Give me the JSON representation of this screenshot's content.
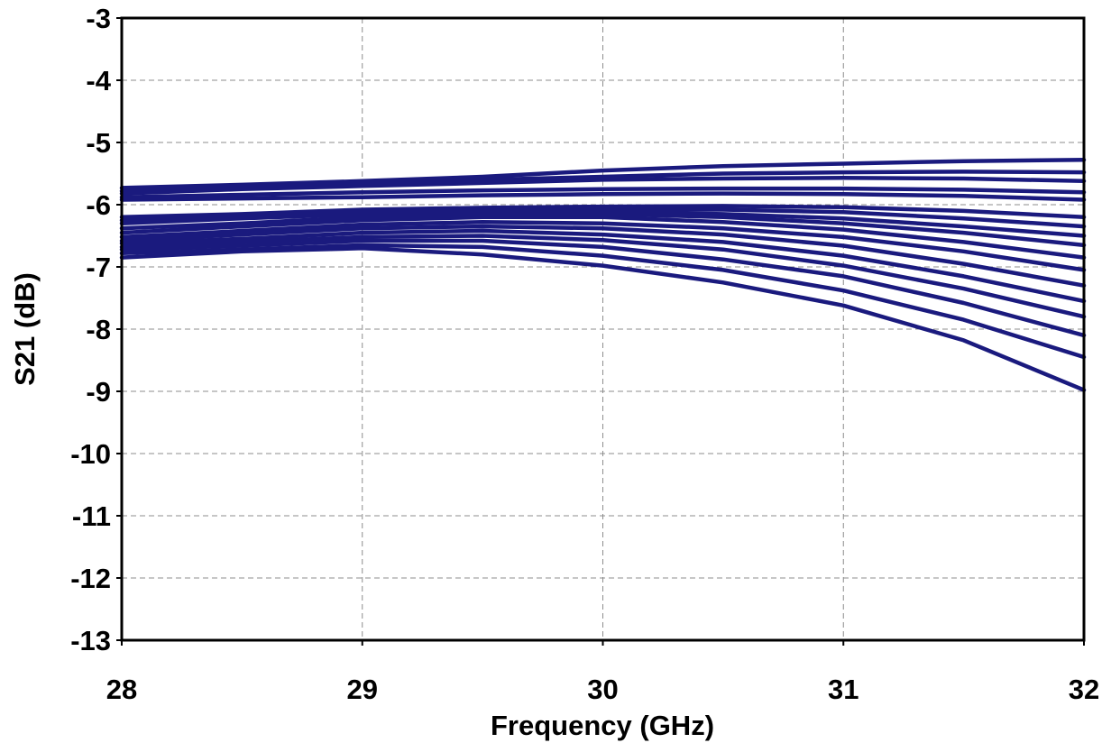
{
  "chart_data": {
    "type": "line",
    "title": "",
    "xlabel": "Frequency (GHz)",
    "ylabel": "S21 (dB)",
    "xlim": [
      28,
      32
    ],
    "ylim": [
      -13,
      -3
    ],
    "x_ticks": [
      "28",
      "29",
      "30",
      "31",
      "32"
    ],
    "y_ticks": [
      "-3",
      "-4",
      "-5",
      "-6",
      "-7",
      "-8",
      "-9",
      "-10",
      "-11",
      "-12",
      "-13"
    ],
    "grid": true,
    "line_color": "#1a1a7e",
    "x": [
      28,
      28.5,
      29,
      29.5,
      30,
      30.5,
      31,
      31.5,
      32
    ],
    "series": [
      {
        "values": [
          -5.73,
          -5.68,
          -5.62,
          -5.55,
          -5.45,
          -5.38,
          -5.34,
          -5.3,
          -5.28
        ]
      },
      {
        "values": [
          -5.78,
          -5.72,
          -5.65,
          -5.6,
          -5.55,
          -5.5,
          -5.48,
          -5.47,
          -5.48
        ]
      },
      {
        "values": [
          -5.82,
          -5.75,
          -5.7,
          -5.65,
          -5.6,
          -5.58,
          -5.57,
          -5.58,
          -5.62
        ]
      },
      {
        "values": [
          -5.88,
          -5.84,
          -5.8,
          -5.77,
          -5.75,
          -5.74,
          -5.74,
          -5.76,
          -5.8
        ]
      },
      {
        "values": [
          -5.92,
          -5.9,
          -5.88,
          -5.85,
          -5.83,
          -5.82,
          -5.83,
          -5.86,
          -5.92
        ]
      },
      {
        "values": [
          -6.2,
          -6.15,
          -6.08,
          -6.05,
          -6.03,
          -6.02,
          -6.04,
          -6.1,
          -6.2
        ]
      },
      {
        "values": [
          -6.25,
          -6.2,
          -6.12,
          -6.1,
          -6.08,
          -6.08,
          -6.12,
          -6.22,
          -6.35
        ]
      },
      {
        "values": [
          -6.3,
          -6.22,
          -6.15,
          -6.12,
          -6.12,
          -6.15,
          -6.22,
          -6.35,
          -6.5
        ]
      },
      {
        "values": [
          -6.38,
          -6.3,
          -6.2,
          -6.15,
          -6.15,
          -6.2,
          -6.3,
          -6.45,
          -6.65
        ]
      },
      {
        "values": [
          -6.45,
          -6.35,
          -6.25,
          -6.2,
          -6.2,
          -6.28,
          -6.4,
          -6.6,
          -6.85
        ]
      },
      {
        "values": [
          -6.52,
          -6.42,
          -6.32,
          -6.28,
          -6.3,
          -6.38,
          -6.52,
          -6.75,
          -7.05
        ]
      },
      {
        "values": [
          -6.58,
          -6.48,
          -6.38,
          -6.35,
          -6.38,
          -6.48,
          -6.66,
          -6.95,
          -7.3
        ]
      },
      {
        "values": [
          -6.62,
          -6.55,
          -6.45,
          -6.42,
          -6.48,
          -6.6,
          -6.82,
          -7.15,
          -7.55
        ]
      },
      {
        "values": [
          -6.68,
          -6.6,
          -6.52,
          -6.5,
          -6.57,
          -6.72,
          -6.98,
          -7.35,
          -7.8
        ]
      },
      {
        "values": [
          -6.72,
          -6.66,
          -6.58,
          -6.58,
          -6.68,
          -6.88,
          -7.15,
          -7.58,
          -8.1
        ]
      },
      {
        "values": [
          -6.78,
          -6.72,
          -6.65,
          -6.68,
          -6.82,
          -7.05,
          -7.38,
          -7.85,
          -8.45
        ]
      },
      {
        "values": [
          -6.85,
          -6.75,
          -6.7,
          -6.8,
          -6.98,
          -7.25,
          -7.62,
          -8.18,
          -8.98
        ]
      }
    ]
  }
}
